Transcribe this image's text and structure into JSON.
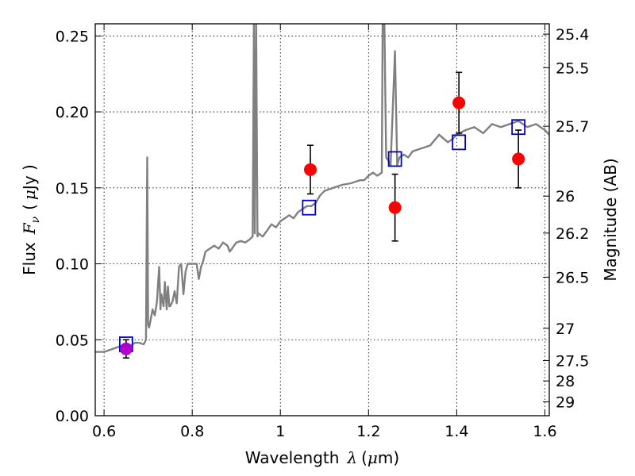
{
  "chart_data": {
    "type": "scatter",
    "title": "",
    "xlabel": "Wavelength",
    "xlabel_symbol": "λ",
    "xlabel_unit_open": "(",
    "xlabel_unit_mu": "μ",
    "xlabel_unit_rest": "m)",
    "ylabel": "Flux",
    "ylabel_symbol": "F",
    "ylabel_subscript": "ν",
    "ylabel_unit_open": "(",
    "ylabel_unit_mu": "μ",
    "ylabel_unit_rest": "Jy )",
    "y2label": "Magnitude (AB)",
    "xlim": [
      0.58,
      1.61
    ],
    "ylim": [
      0.0,
      0.258
    ],
    "grid": true,
    "xticks": [
      {
        "value": 0.6,
        "label": "0.6"
      },
      {
        "value": 0.8,
        "label": "0.8"
      },
      {
        "value": 1.0,
        "label": "1"
      },
      {
        "value": 1.2,
        "label": "1.2"
      },
      {
        "value": 1.4,
        "label": "1.4"
      },
      {
        "value": 1.6,
        "label": "1.6"
      }
    ],
    "yticks": [
      {
        "value": 0.0,
        "label": "0.00"
      },
      {
        "value": 0.05,
        "label": "0.05"
      },
      {
        "value": 0.1,
        "label": "0.10"
      },
      {
        "value": 0.15,
        "label": "0.15"
      },
      {
        "value": 0.2,
        "label": "0.20"
      },
      {
        "value": 0.25,
        "label": "0.25"
      }
    ],
    "y2ticks": [
      {
        "value": 25.4,
        "label": "25.4"
      },
      {
        "value": 25.5,
        "label": "25.5"
      },
      {
        "value": 25.7,
        "label": "25.7"
      },
      {
        "value": 26.0,
        "label": "26"
      },
      {
        "value": 26.2,
        "label": "26.2"
      },
      {
        "value": 26.5,
        "label": "26.5"
      },
      {
        "value": 27.0,
        "label": "27"
      },
      {
        "value": 27.5,
        "label": "27.5"
      },
      {
        "value": 28.0,
        "label": "28"
      },
      {
        "value": 29.0,
        "label": "29"
      }
    ],
    "series": [
      {
        "kind": "model-spectrum",
        "color": "#808080",
        "x": [
          0.58,
          0.6,
          0.62,
          0.64,
          0.66,
          0.67,
          0.68,
          0.69,
          0.695,
          0.698,
          0.7,
          0.702,
          0.705,
          0.71,
          0.715,
          0.72,
          0.725,
          0.728,
          0.73,
          0.735,
          0.738,
          0.742,
          0.745,
          0.748,
          0.75,
          0.755,
          0.76,
          0.765,
          0.77,
          0.775,
          0.78,
          0.785,
          0.79,
          0.8,
          0.81,
          0.815,
          0.82,
          0.825,
          0.83,
          0.84,
          0.85,
          0.86,
          0.87,
          0.88,
          0.885,
          0.89,
          0.9,
          0.91,
          0.92,
          0.93,
          0.937,
          0.94,
          0.942,
          0.945,
          0.948,
          0.95,
          0.96,
          0.97,
          0.98,
          0.985,
          0.99,
          1.0,
          1.01,
          1.02,
          1.03,
          1.04,
          1.05,
          1.06,
          1.07,
          1.08,
          1.09,
          1.1,
          1.12,
          1.14,
          1.16,
          1.18,
          1.19,
          1.2,
          1.21,
          1.22,
          1.23,
          1.232,
          1.236,
          1.24,
          1.245,
          1.25,
          1.26,
          1.265,
          1.27,
          1.28,
          1.29,
          1.3,
          1.32,
          1.34,
          1.36,
          1.38,
          1.39,
          1.4,
          1.42,
          1.44,
          1.46,
          1.48,
          1.5,
          1.52,
          1.54,
          1.56,
          1.58,
          1.6,
          1.61
        ],
        "y": [
          0.042,
          0.042,
          0.044,
          0.046,
          0.046,
          0.048,
          0.048,
          0.047,
          0.05,
          0.17,
          0.06,
          0.058,
          0.062,
          0.07,
          0.066,
          0.075,
          0.098,
          0.07,
          0.08,
          0.072,
          0.088,
          0.07,
          0.085,
          0.072,
          0.072,
          0.075,
          0.082,
          0.074,
          0.098,
          0.1,
          0.08,
          0.095,
          0.1,
          0.1,
          0.1,
          0.09,
          0.098,
          0.102,
          0.108,
          0.11,
          0.112,
          0.11,
          0.114,
          0.112,
          0.108,
          0.11,
          0.114,
          0.115,
          0.114,
          0.116,
          0.118,
          0.258,
          0.12,
          0.258,
          0.118,
          0.12,
          0.118,
          0.122,
          0.126,
          0.125,
          0.124,
          0.128,
          0.13,
          0.132,
          0.13,
          0.134,
          0.136,
          0.138,
          0.138,
          0.14,
          0.145,
          0.148,
          0.15,
          0.152,
          0.153,
          0.155,
          0.155,
          0.158,
          0.16,
          0.158,
          0.16,
          0.258,
          0.258,
          0.17,
          0.168,
          0.165,
          0.24,
          0.165,
          0.17,
          0.172,
          0.17,
          0.174,
          0.176,
          0.178,
          0.185,
          0.18,
          0.182,
          0.185,
          0.188,
          0.19,
          0.186,
          0.192,
          0.19,
          0.192,
          0.194,
          0.19,
          0.192,
          0.188,
          0.185
        ]
      },
      {
        "kind": "observed-photometry",
        "color": "#ff0000",
        "points": [
          {
            "x": 1.068,
            "y": 0.162,
            "yerr": 0.016
          },
          {
            "x": 1.26,
            "y": 0.137,
            "yerr": 0.022
          },
          {
            "x": 1.405,
            "y": 0.206,
            "yerr": 0.02
          },
          {
            "x": 1.54,
            "y": 0.169,
            "yerr": 0.019
          }
        ]
      },
      {
        "kind": "observed-photometry-highlight",
        "color": "#b000cc",
        "points": [
          {
            "x": 0.65,
            "y": 0.044,
            "yerr": 0.006
          }
        ]
      },
      {
        "kind": "model-photometry",
        "color": "#0000cc",
        "points": [
          {
            "x": 0.65,
            "y": 0.047
          },
          {
            "x": 1.065,
            "y": 0.137
          },
          {
            "x": 1.26,
            "y": 0.169
          },
          {
            "x": 1.405,
            "y": 0.18
          },
          {
            "x": 1.54,
            "y": 0.19
          }
        ]
      }
    ]
  }
}
